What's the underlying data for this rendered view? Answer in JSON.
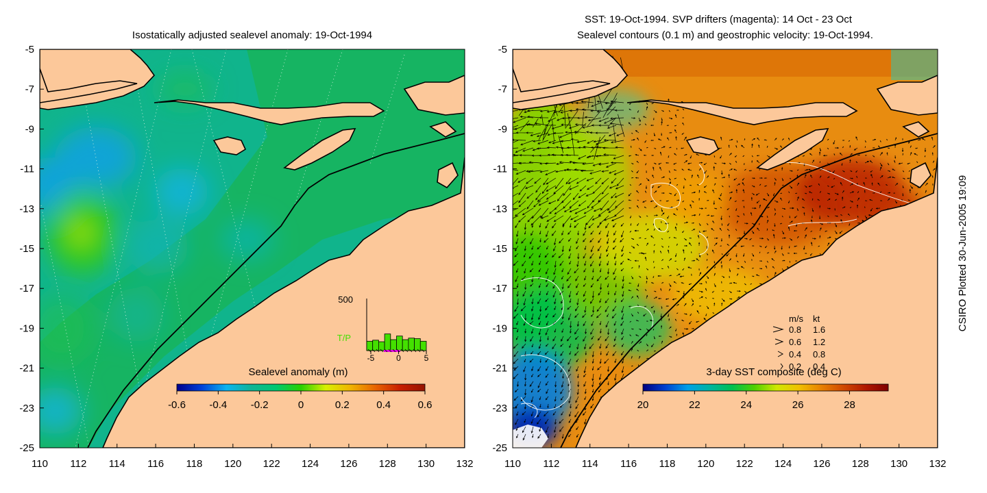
{
  "left_panel": {
    "title": "Isostatically adjusted sealevel anomaly: 19-Oct-1994",
    "colorbar": {
      "label": "Sealevel anomaly (m)",
      "min": -0.6,
      "max": 0.6,
      "ticks": [
        "-0.6",
        "-0.4",
        "-0.2",
        "0",
        "0.2",
        "0.4",
        "0.6"
      ],
      "colors": [
        "#00008c",
        "#0040d8",
        "#0ab4f0",
        "#10b496",
        "#00c870",
        "#28d000",
        "#d8f000",
        "#f0b400",
        "#e86400",
        "#c81e00",
        "#961400"
      ]
    },
    "histogram": {
      "ymax_label": "500",
      "series_label": "T/P",
      "x_ticks": [
        "-5",
        "0",
        "5"
      ],
      "bin_heights": [
        0.18,
        0.2,
        0.17,
        0.32,
        0.21,
        0.28,
        0.21,
        0.24,
        0.23,
        0.18
      ]
    }
  },
  "right_panel": {
    "title_line1": "SST: 19-Oct-1994. SVP drifters (magenta): 14 Oct - 23 Oct",
    "title_line2": "Sealevel contours (0.1 m) and geostrophic velocity: 19-Oct-1994.",
    "colorbar": {
      "label": "3-day SST composite (deg C)",
      "min": 20,
      "max": 29.5,
      "ticks": [
        "20",
        "22",
        "24",
        "26",
        "28"
      ],
      "colors": [
        "#000080",
        "#0040d0",
        "#00a0e8",
        "#00b4a0",
        "#00c050",
        "#50d000",
        "#d0e800",
        "#f0c000",
        "#e88000",
        "#d04800",
        "#b01800",
        "#800000"
      ]
    },
    "velocity_legend": {
      "header_ms": "m/s",
      "header_kt": "kt",
      "rows": [
        {
          "ms": "0.8",
          "kt": "1.6"
        },
        {
          "ms": "0.6",
          "kt": "1.2"
        },
        {
          "ms": "0.4",
          "kt": "0.8"
        },
        {
          "ms": "0.2",
          "kt": "0.4"
        }
      ]
    }
  },
  "axes": {
    "lon_ticks": [
      "110",
      "112",
      "114",
      "116",
      "118",
      "120",
      "122",
      "124",
      "126",
      "128",
      "130",
      "132"
    ],
    "lat_ticks": [
      "-5",
      "-7",
      "-9",
      "-11",
      "-13",
      "-15",
      "-17",
      "-19",
      "-21",
      "-23",
      "-25"
    ],
    "lon_range": [
      110,
      132
    ],
    "lat_range": [
      -25,
      -5
    ]
  },
  "credit": "CSIRO Plotted 30-Jun-2005 19:09",
  "colors": {
    "land": "#fcc89a",
    "sea_base_left": "#10b48c",
    "sea_shelf_left": "#18b45a",
    "sea_base_right": "#e88c10",
    "white": "#ffffff"
  }
}
